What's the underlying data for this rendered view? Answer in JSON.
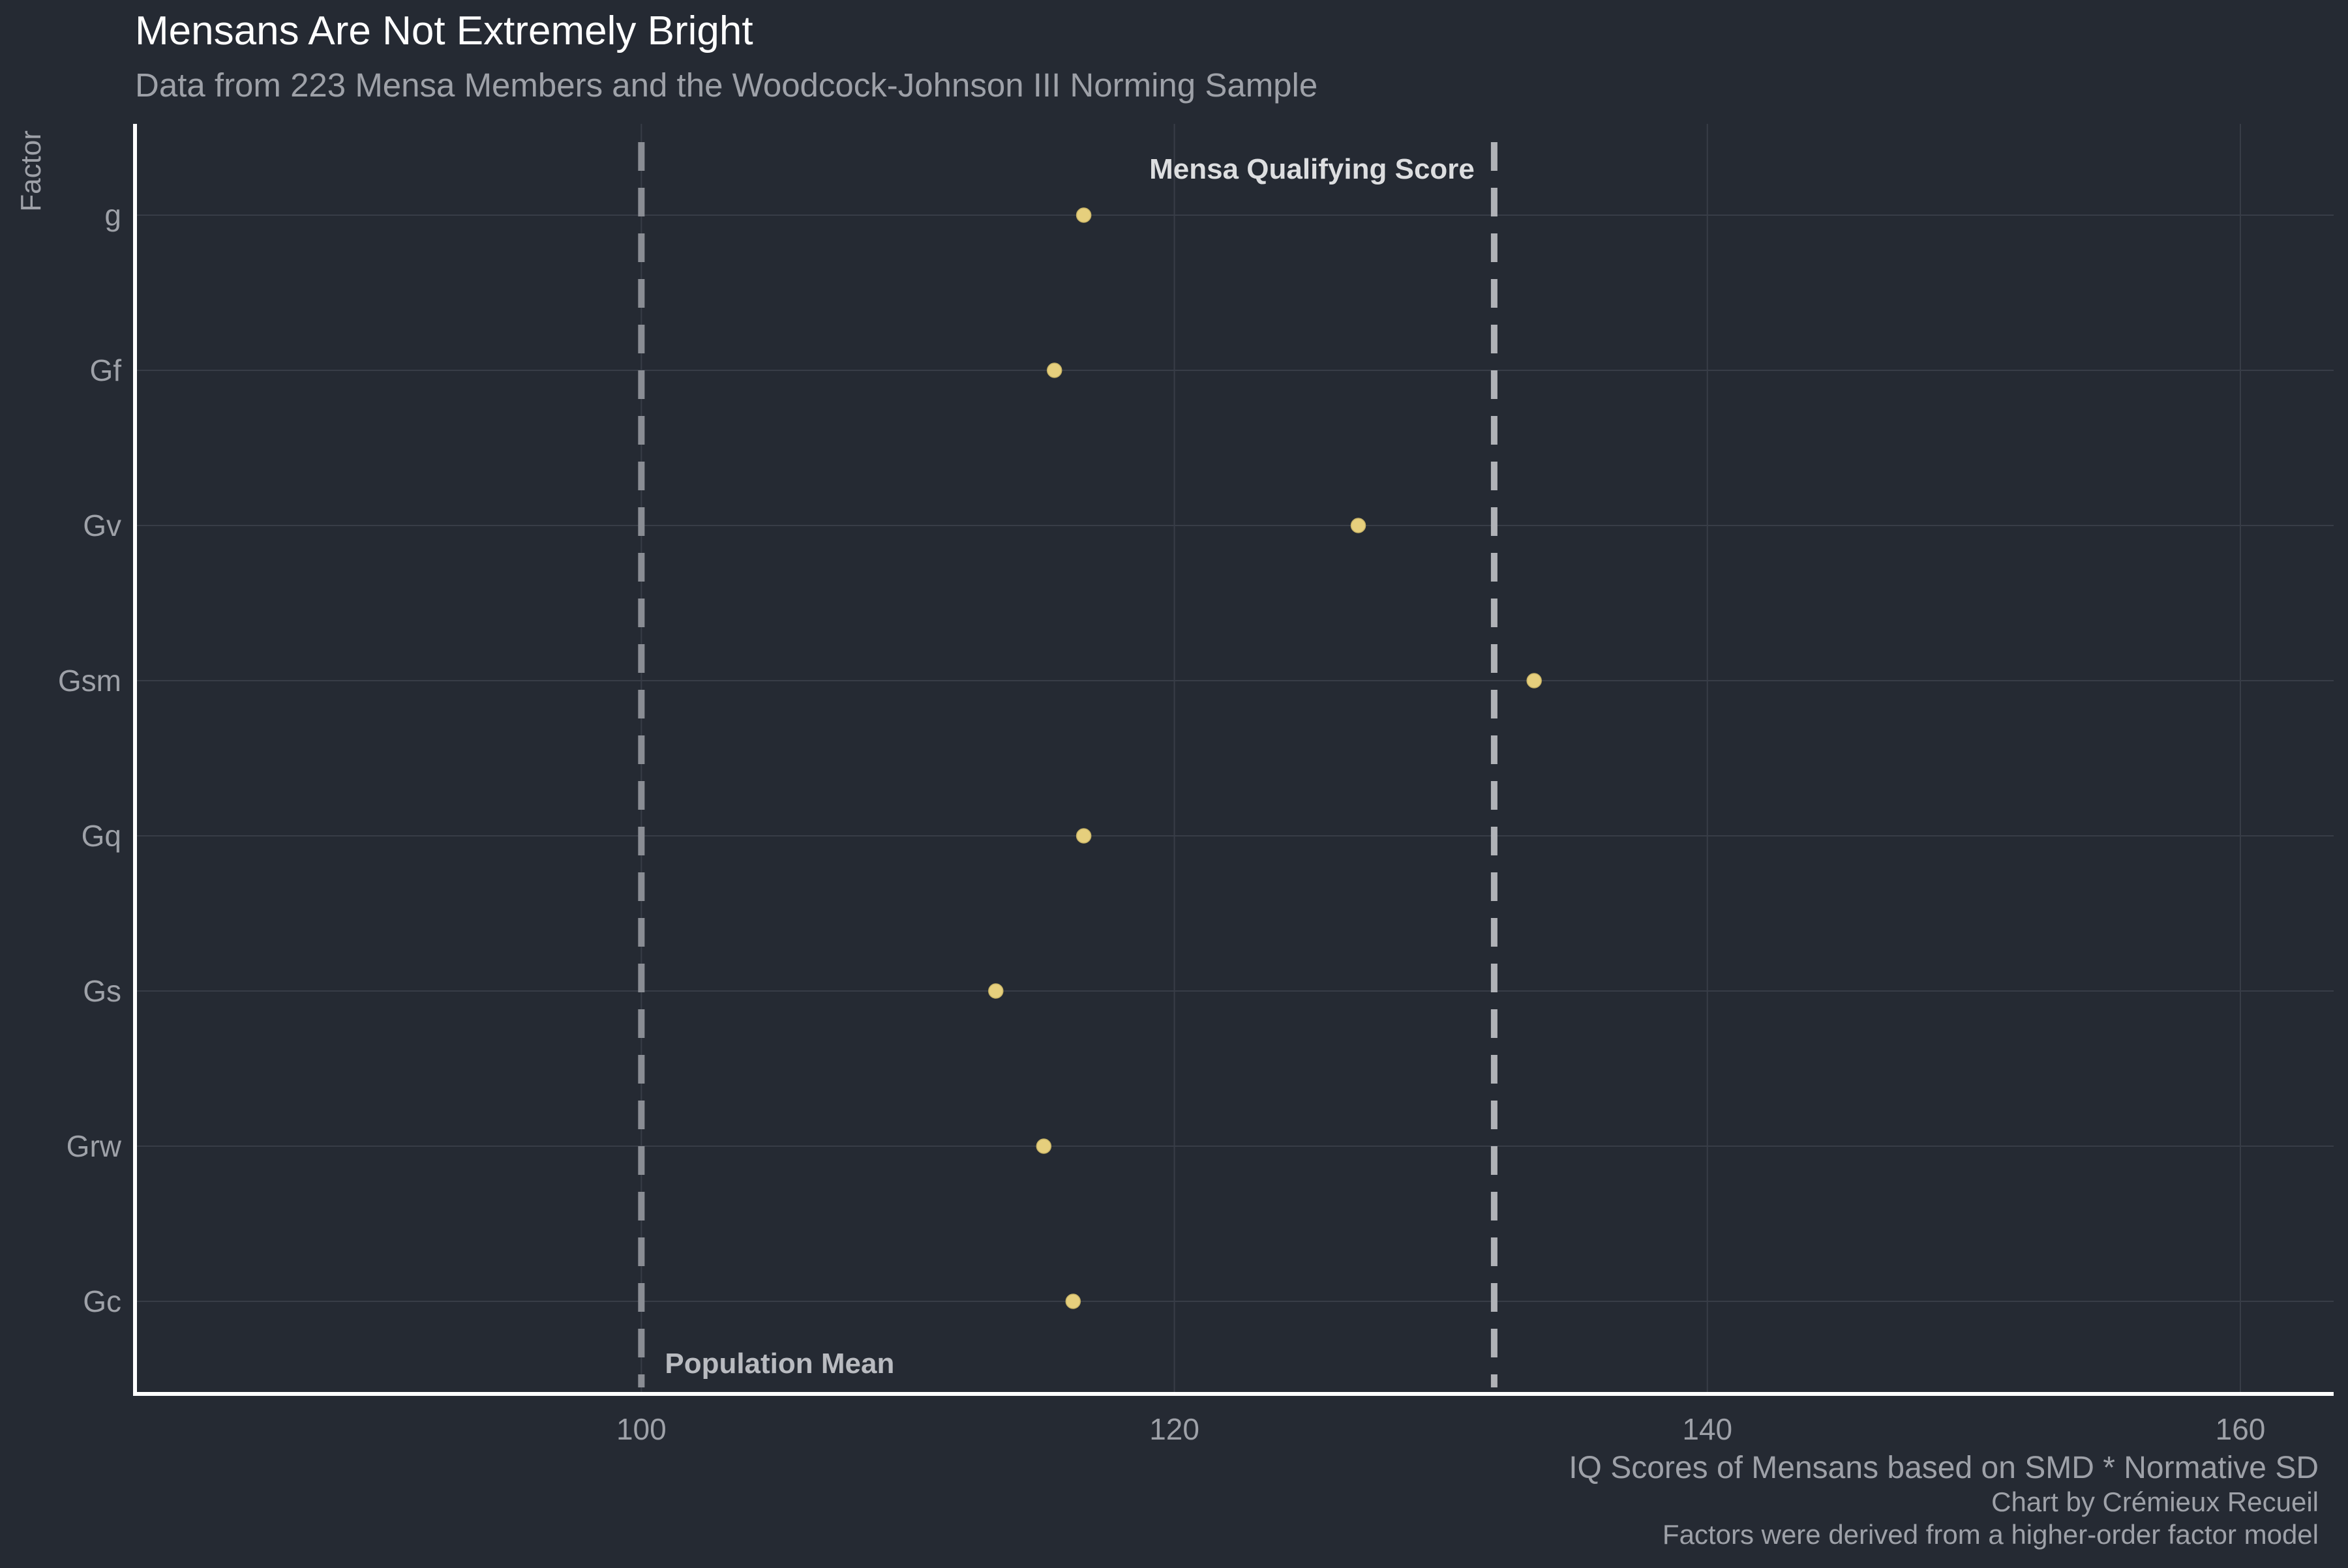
{
  "colors": {
    "background": "#252a33",
    "grid": "#383d47",
    "axis": "#ffffff",
    "point_fill": "#e6cf7d",
    "reference_line": "#8a8d94",
    "qualifying_line": "#b0b2b7",
    "title_text": "#ffffff",
    "muted_text": "#9ea1a8"
  },
  "chart_data": {
    "type": "scatter",
    "title": "Mensans Are Not Extremely Bright",
    "subtitle": "Data from 223 Mensa Members and the Woodcock-Johnson III Norming Sample",
    "xlabel": "IQ Scores of Mensans based on SMD * Normative SD",
    "ylabel": "Factor",
    "caption_lines": [
      "Chart by Crémieux Recueil",
      "Factors were derived from a higher-order factor model"
    ],
    "xlim": [
      81,
      163.5
    ],
    "x_ticks": [
      100,
      120,
      140,
      160
    ],
    "categories": [
      "g",
      "Gf",
      "Gv",
      "Gsm",
      "Gq",
      "Gs",
      "Grw",
      "Gc"
    ],
    "values": [
      116.6,
      115.5,
      126.9,
      133.5,
      116.6,
      113.3,
      115.1,
      116.2
    ],
    "reference_lines": [
      {
        "x": 100,
        "label": "Population Mean",
        "style": "dashed"
      },
      {
        "x": 132,
        "label": "Mensa Qualifying Score",
        "style": "dashed"
      }
    ],
    "grid": true,
    "legend": "none"
  }
}
